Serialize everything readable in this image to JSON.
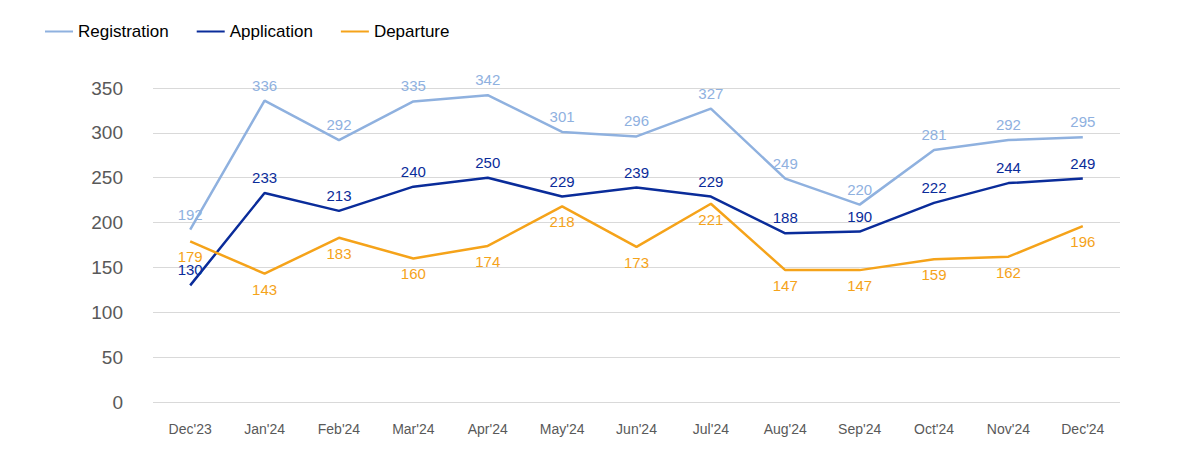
{
  "chart_data": {
    "type": "line",
    "categories": [
      "Dec'23",
      "Jan'24",
      "Feb'24",
      "Mar'24",
      "Apr'24",
      "May'24",
      "Jun'24",
      "Jul'24",
      "Aug'24",
      "Sep'24",
      "Oct'24",
      "Nov'24",
      "Dec'24"
    ],
    "series": [
      {
        "name": "Registration",
        "color": "#8fb1df",
        "values": [
          192,
          336,
          292,
          335,
          342,
          301,
          296,
          327,
          249,
          220,
          281,
          292,
          295
        ]
      },
      {
        "name": "Application",
        "color": "#0a2c9a",
        "values": [
          130,
          233,
          213,
          240,
          250,
          229,
          239,
          229,
          188,
          190,
          222,
          244,
          249
        ]
      },
      {
        "name": "Departure",
        "color": "#f5a31a",
        "values": [
          179,
          143,
          183,
          160,
          174,
          218,
          173,
          221,
          147,
          147,
          159,
          162,
          196
        ]
      }
    ],
    "ylim": [
      0,
      350
    ],
    "yticks": [
      0,
      50,
      100,
      150,
      200,
      250,
      300,
      350
    ],
    "grid": true,
    "legend": "top-left",
    "data_labels": true
  }
}
